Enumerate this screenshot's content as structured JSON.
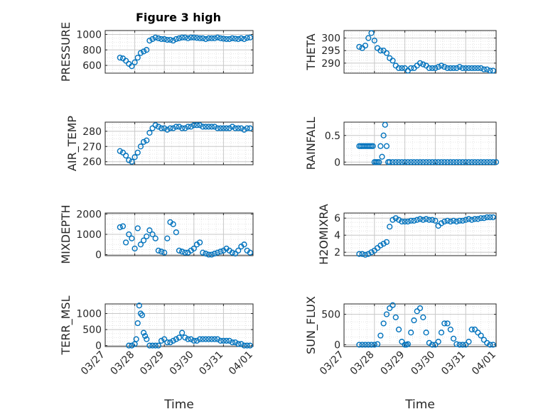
{
  "title": "Figure 3 high",
  "marker_color": "#0072BD",
  "chart_data": [
    {
      "type": "scatter",
      "ylabel": "PRESSURE",
      "yticks": [
        "600",
        "800",
        "1000"
      ],
      "ylim": [
        500,
        1050
      ],
      "xlim": [
        0,
        5
      ],
      "xticklabels": [],
      "xlabel": "",
      "grid": "on",
      "x": [
        0.5,
        0.6,
        0.7,
        0.8,
        0.9,
        1.0,
        1.1,
        1.2,
        1.3,
        1.4,
        1.5,
        1.6,
        1.7,
        1.8,
        1.9,
        2.0,
        2.1,
        2.2,
        2.3,
        2.4,
        2.5,
        2.6,
        2.7,
        2.8,
        2.9,
        3.0,
        3.1,
        3.2,
        3.3,
        3.4,
        3.5,
        3.6,
        3.7,
        3.8,
        3.9,
        4.0,
        4.1,
        4.2,
        4.3,
        4.4,
        4.5,
        4.6,
        4.7,
        4.8,
        4.9
      ],
      "y": [
        700,
        690,
        660,
        620,
        590,
        640,
        700,
        760,
        780,
        800,
        920,
        940,
        960,
        950,
        940,
        940,
        930,
        930,
        920,
        940,
        950,
        960,
        960,
        950,
        960,
        960,
        955,
        950,
        950,
        940,
        950,
        950,
        950,
        960,
        950,
        945,
        940,
        940,
        950,
        945,
        940,
        950,
        940,
        955,
        960
      ]
    },
    {
      "type": "scatter",
      "ylabel": "THETA",
      "yticks": [
        "290",
        "295",
        "300"
      ],
      "ylim": [
        286,
        303
      ],
      "xlim": [
        0,
        5
      ],
      "xticklabels": [],
      "xlabel": "",
      "grid": "on",
      "x": [
        0.5,
        0.6,
        0.7,
        0.8,
        0.9,
        1.0,
        1.1,
        1.2,
        1.3,
        1.4,
        1.5,
        1.6,
        1.7,
        1.8,
        1.9,
        2.0,
        2.1,
        2.2,
        2.3,
        2.4,
        2.5,
        2.6,
        2.7,
        2.8,
        2.9,
        3.0,
        3.1,
        3.2,
        3.3,
        3.4,
        3.5,
        3.6,
        3.7,
        3.8,
        3.9,
        4.0,
        4.1,
        4.2,
        4.3,
        4.4,
        4.5,
        4.6,
        4.7,
        4.8,
        4.9
      ],
      "y": [
        296.5,
        296,
        297,
        300,
        302,
        299,
        296,
        295,
        295,
        294,
        292,
        291,
        289,
        288,
        288,
        288,
        287,
        288,
        288,
        289,
        290,
        289.5,
        289,
        288,
        288,
        288,
        288.5,
        289,
        288.5,
        288,
        288,
        288,
        288,
        288.5,
        288,
        288,
        288,
        288,
        288,
        288,
        288,
        287.5,
        287.5,
        287,
        287
      ]
    },
    {
      "type": "scatter",
      "ylabel": "AIR_TEMP",
      "yticks": [
        "260",
        "270",
        "280"
      ],
      "ylim": [
        258,
        286
      ],
      "xlim": [
        0,
        5
      ],
      "xticklabels": [],
      "xlabel": "",
      "grid": "on",
      "x": [
        0.5,
        0.6,
        0.7,
        0.8,
        0.9,
        1.0,
        1.1,
        1.2,
        1.3,
        1.4,
        1.5,
        1.6,
        1.7,
        1.8,
        1.9,
        2.0,
        2.1,
        2.2,
        2.3,
        2.4,
        2.5,
        2.6,
        2.7,
        2.8,
        2.9,
        3.0,
        3.1,
        3.2,
        3.3,
        3.4,
        3.5,
        3.6,
        3.7,
        3.8,
        3.9,
        4.0,
        4.1,
        4.2,
        4.3,
        4.4,
        4.5,
        4.6,
        4.7,
        4.8,
        4.9
      ],
      "y": [
        267,
        266,
        264,
        261,
        260,
        263,
        266,
        270,
        273,
        274,
        279,
        282,
        284,
        283,
        282,
        282,
        281,
        282,
        282,
        283,
        283,
        282,
        282,
        283,
        283,
        284,
        284,
        284,
        283,
        283,
        283,
        283,
        283,
        282,
        282,
        282,
        282,
        282,
        283,
        282,
        282,
        282,
        281,
        282,
        282
      ]
    },
    {
      "type": "scatter",
      "ylabel": "RAINFALL",
      "yticks": [
        "0",
        "0.5"
      ],
      "ylim": [
        -0.05,
        0.75
      ],
      "xlim": [
        0,
        5
      ],
      "xticklabels": [],
      "xlabel": "",
      "grid": "on",
      "x": [
        0.5,
        0.55,
        0.6,
        0.65,
        0.7,
        0.75,
        0.8,
        0.85,
        0.9,
        0.95,
        1.0,
        1.05,
        1.1,
        1.15,
        1.2,
        1.25,
        1.3,
        1.35,
        1.4,
        1.45,
        1.5,
        1.6,
        1.7,
        1.8,
        1.9,
        2.0,
        2.1,
        2.2,
        2.3,
        2.4,
        2.5,
        2.6,
        2.7,
        2.8,
        2.9,
        3.0,
        3.1,
        3.2,
        3.3,
        3.4,
        3.5,
        3.6,
        3.7,
        3.8,
        3.9,
        4.0,
        4.1,
        4.2,
        4.3,
        4.4,
        4.5,
        4.6,
        4.7,
        4.8,
        4.9,
        5.0
      ],
      "y": [
        0.3,
        0.3,
        0.3,
        0.3,
        0.3,
        0.3,
        0.3,
        0.3,
        0.3,
        0.3,
        0.0,
        0.0,
        0.0,
        0.0,
        0.3,
        0.1,
        0.5,
        0.7,
        0.3,
        0.0,
        0.0,
        0.0,
        0.0,
        0.0,
        0.0,
        0.0,
        0.0,
        0.0,
        0.0,
        0.0,
        0.0,
        0.0,
        0.0,
        0.0,
        0.0,
        0.0,
        0.0,
        0.0,
        0.0,
        0.0,
        0.0,
        0.0,
        0.0,
        0.0,
        0.0,
        0.0,
        0.0,
        0.0,
        0.0,
        0.0,
        0.0,
        0.0,
        0.0,
        0.0,
        0.0,
        0.0
      ]
    },
    {
      "type": "scatter",
      "ylabel": "MIXDEPTH",
      "yticks": [
        "0",
        "1000",
        "2000"
      ],
      "ylim": [
        -50,
        2050
      ],
      "xlim": [
        0,
        5
      ],
      "xticklabels": [],
      "xlabel": "",
      "grid": "on",
      "x": [
        0.5,
        0.6,
        0.7,
        0.8,
        0.9,
        1.0,
        1.1,
        1.2,
        1.3,
        1.4,
        1.5,
        1.6,
        1.7,
        1.8,
        1.9,
        2.0,
        2.1,
        2.2,
        2.3,
        2.4,
        2.5,
        2.6,
        2.7,
        2.8,
        2.9,
        3.0,
        3.1,
        3.2,
        3.3,
        3.4,
        3.5,
        3.6,
        3.7,
        3.8,
        3.9,
        4.0,
        4.1,
        4.2,
        4.3,
        4.4,
        4.5,
        4.6,
        4.7,
        4.8,
        4.9
      ],
      "y": [
        1350,
        1400,
        600,
        1000,
        800,
        300,
        1300,
        500,
        700,
        900,
        1200,
        1000,
        800,
        200,
        150,
        100,
        800,
        1600,
        1500,
        1100,
        200,
        150,
        100,
        100,
        200,
        300,
        500,
        600,
        100,
        50,
        0,
        0,
        50,
        100,
        150,
        200,
        300,
        200,
        100,
        50,
        200,
        400,
        500,
        200,
        100
      ]
    },
    {
      "type": "scatter",
      "ylabel": "H2OMIXRA",
      "yticks": [
        "2",
        "4",
        "6"
      ],
      "ylim": [
        1.6,
        6.6
      ],
      "xlim": [
        0,
        5
      ],
      "xticklabels": [],
      "xlabel": "",
      "grid": "on",
      "x": [
        0.5,
        0.6,
        0.7,
        0.8,
        0.9,
        1.0,
        1.1,
        1.2,
        1.3,
        1.4,
        1.5,
        1.6,
        1.7,
        1.8,
        1.9,
        2.0,
        2.1,
        2.2,
        2.3,
        2.4,
        2.5,
        2.6,
        2.7,
        2.8,
        2.9,
        3.0,
        3.1,
        3.2,
        3.3,
        3.4,
        3.5,
        3.6,
        3.7,
        3.8,
        3.9,
        4.0,
        4.1,
        4.2,
        4.3,
        4.4,
        4.5,
        4.6,
        4.7,
        4.8,
        4.9
      ],
      "y": [
        1.8,
        1.8,
        1.7,
        1.8,
        2.0,
        2.2,
        2.5,
        2.8,
        3.0,
        3.2,
        5.0,
        5.8,
        6.0,
        5.8,
        5.6,
        5.6,
        5.6,
        5.7,
        5.7,
        5.8,
        5.9,
        5.8,
        5.9,
        5.8,
        5.8,
        5.7,
        5.1,
        5.4,
        5.6,
        5.7,
        5.6,
        5.7,
        5.6,
        5.7,
        5.7,
        5.8,
        5.9,
        5.8,
        5.9,
        5.9,
        6.0,
        6.0,
        6.1,
        6.1,
        6.1
      ]
    },
    {
      "type": "scatter",
      "ylabel": "TERR_MSL",
      "yticks": [
        "0",
        "500",
        "1000"
      ],
      "ylim": [
        -30,
        1300
      ],
      "xlim": [
        0,
        5
      ],
      "xticklabels": [
        "03/27",
        "03/28",
        "03/29",
        "03/30",
        "03/31",
        "04/01"
      ],
      "xlabel": "Time",
      "grid": "on",
      "x": [
        0.8,
        0.9,
        1.0,
        1.05,
        1.1,
        1.15,
        1.2,
        1.25,
        1.3,
        1.35,
        1.4,
        1.5,
        1.6,
        1.7,
        1.8,
        1.9,
        2.0,
        2.1,
        2.2,
        2.3,
        2.4,
        2.5,
        2.6,
        2.7,
        2.8,
        2.9,
        3.0,
        3.1,
        3.2,
        3.3,
        3.4,
        3.5,
        3.6,
        3.7,
        3.8,
        3.9,
        4.0,
        4.1,
        4.2,
        4.3,
        4.4,
        4.5,
        4.6,
        4.7,
        4.8,
        4.9
      ],
      "y": [
        0,
        0,
        50,
        200,
        700,
        1250,
        1000,
        950,
        400,
        300,
        200,
        0,
        0,
        0,
        0,
        150,
        200,
        100,
        100,
        150,
        200,
        250,
        400,
        250,
        200,
        200,
        150,
        150,
        200,
        200,
        200,
        200,
        200,
        200,
        200,
        150,
        150,
        150,
        150,
        100,
        100,
        50,
        50,
        0,
        0,
        0
      ]
    },
    {
      "type": "scatter",
      "ylabel": "SUN_FLUX",
      "yticks": [
        "0",
        "500"
      ],
      "ylim": [
        -30,
        670
      ],
      "xlim": [
        0,
        5
      ],
      "xticklabels": [
        "03/27",
        "03/28",
        "03/29",
        "03/30",
        "03/31",
        "04/01"
      ],
      "xlabel": "Time",
      "grid": "on",
      "x": [
        0.5,
        0.6,
        0.7,
        0.8,
        0.9,
        1.0,
        1.1,
        1.2,
        1.3,
        1.4,
        1.5,
        1.6,
        1.7,
        1.8,
        1.9,
        2.0,
        2.05,
        2.1,
        2.2,
        2.3,
        2.4,
        2.5,
        2.6,
        2.7,
        2.8,
        2.9,
        3.0,
        3.1,
        3.2,
        3.3,
        3.4,
        3.5,
        3.6,
        3.7,
        3.8,
        3.9,
        4.0,
        4.1,
        4.2,
        4.3,
        4.4,
        4.5,
        4.6,
        4.7,
        4.8,
        4.9
      ],
      "y": [
        0,
        0,
        0,
        0,
        0,
        0,
        10,
        150,
        350,
        500,
        600,
        650,
        450,
        250,
        50,
        0,
        0,
        10,
        200,
        400,
        550,
        600,
        450,
        200,
        30,
        0,
        0,
        50,
        200,
        350,
        350,
        250,
        100,
        10,
        0,
        0,
        0,
        50,
        250,
        250,
        200,
        150,
        80,
        30,
        0,
        0
      ]
    }
  ]
}
